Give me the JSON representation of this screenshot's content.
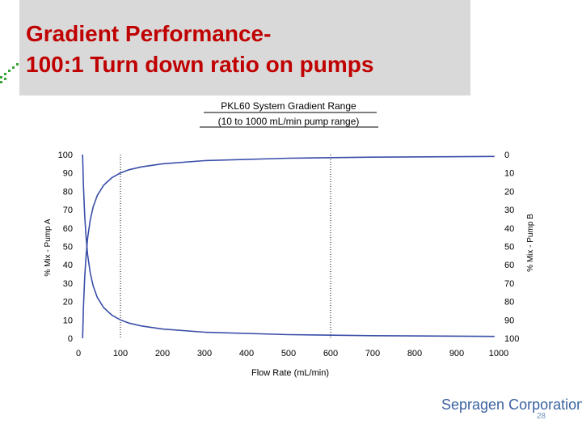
{
  "slide": {
    "title_line1": "Gradient Performance-",
    "title_line2": "100:1 Turn down ratio on pumps",
    "brand": "Sepragen Corporation",
    "page_number": "28",
    "accent_color": "#c00000",
    "brand_color": "#3a62a0"
  },
  "chart_data": {
    "type": "line",
    "title": "PKL60 System Gradient Range",
    "subtitle": "(10 to 1000 mL/min pump range)",
    "xlabel": "Flow Rate (mL/min)",
    "ylabel": "% Mix - Pump A",
    "y2label": "% Mix - Pump B",
    "xlim": [
      0,
      1000
    ],
    "ylim": [
      0,
      100
    ],
    "y2lim": [
      100,
      0
    ],
    "x_ticks": [
      0,
      100,
      200,
      300,
      400,
      500,
      600,
      700,
      800,
      900,
      1000
    ],
    "y_ticks": [
      0,
      10,
      20,
      30,
      40,
      50,
      60,
      70,
      80,
      90,
      100
    ],
    "y2_ticks": [
      100,
      90,
      80,
      70,
      60,
      50,
      40,
      30,
      20,
      10,
      0
    ],
    "reference_lines_x": [
      100,
      600
    ],
    "grid": false,
    "series": [
      {
        "x": [
          990,
          700,
          500,
          300,
          200,
          150,
          120,
          100,
          80,
          60,
          45,
          35,
          28,
          22,
          18,
          15,
          12,
          10
        ],
        "y": [
          99,
          98.6,
          98,
          96.7,
          95,
          93.3,
          91.7,
          90,
          87.5,
          83.3,
          77.8,
          71.4,
          64.3,
          54.5,
          44.4,
          33.3,
          16.7,
          0
        ]
      },
      {
        "x": [
          990,
          700,
          500,
          300,
          200,
          150,
          120,
          100,
          80,
          60,
          45,
          35,
          28,
          22,
          18,
          15,
          12,
          10
        ],
        "y": [
          1,
          1.4,
          2,
          3.3,
          5,
          6.7,
          8.3,
          10,
          12.5,
          16.7,
          22.2,
          28.6,
          35.7,
          45.5,
          55.6,
          66.7,
          83.3,
          100
        ]
      }
    ],
    "line_color": "#3a4ea8"
  }
}
